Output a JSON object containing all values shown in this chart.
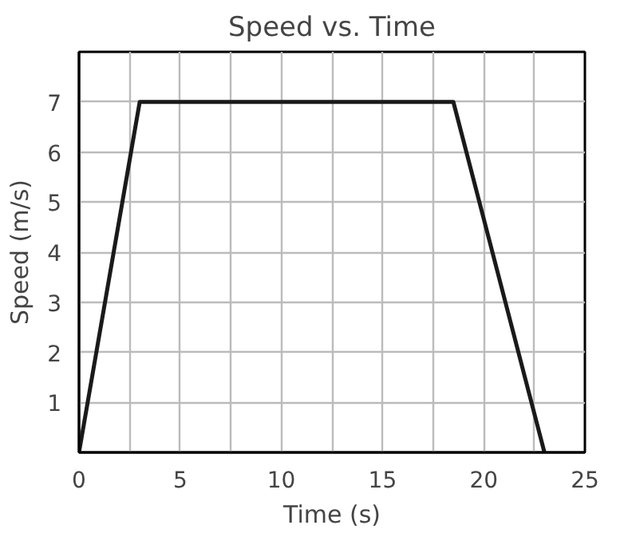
{
  "chart_data": {
    "type": "line",
    "title": "Speed vs. Time",
    "xlabel": "Time (s)",
    "ylabel": "Speed (m/s)",
    "x": [
      0,
      3,
      18.5,
      23
    ],
    "series": [
      {
        "color": "#1a1a1a",
        "values": [
          0,
          7,
          7,
          0
        ]
      }
    ],
    "xlim": [
      0,
      25
    ],
    "ylim": [
      0,
      8
    ],
    "xticks": [
      0,
      {
        "value": 2.5,
        "label": null
      },
      5,
      {
        "value": 7.5,
        "label": null
      },
      10,
      {
        "value": 12.5,
        "label": null
      },
      15,
      {
        "value": 17.5,
        "label": null
      },
      20,
      {
        "value": 22.5,
        "label": null
      },
      25
    ],
    "yticks": [
      1,
      2,
      3,
      4,
      5,
      6,
      7,
      {
        "value": 8,
        "label": null
      }
    ],
    "grid": true,
    "marker": "none",
    "line_style": "solid"
  }
}
